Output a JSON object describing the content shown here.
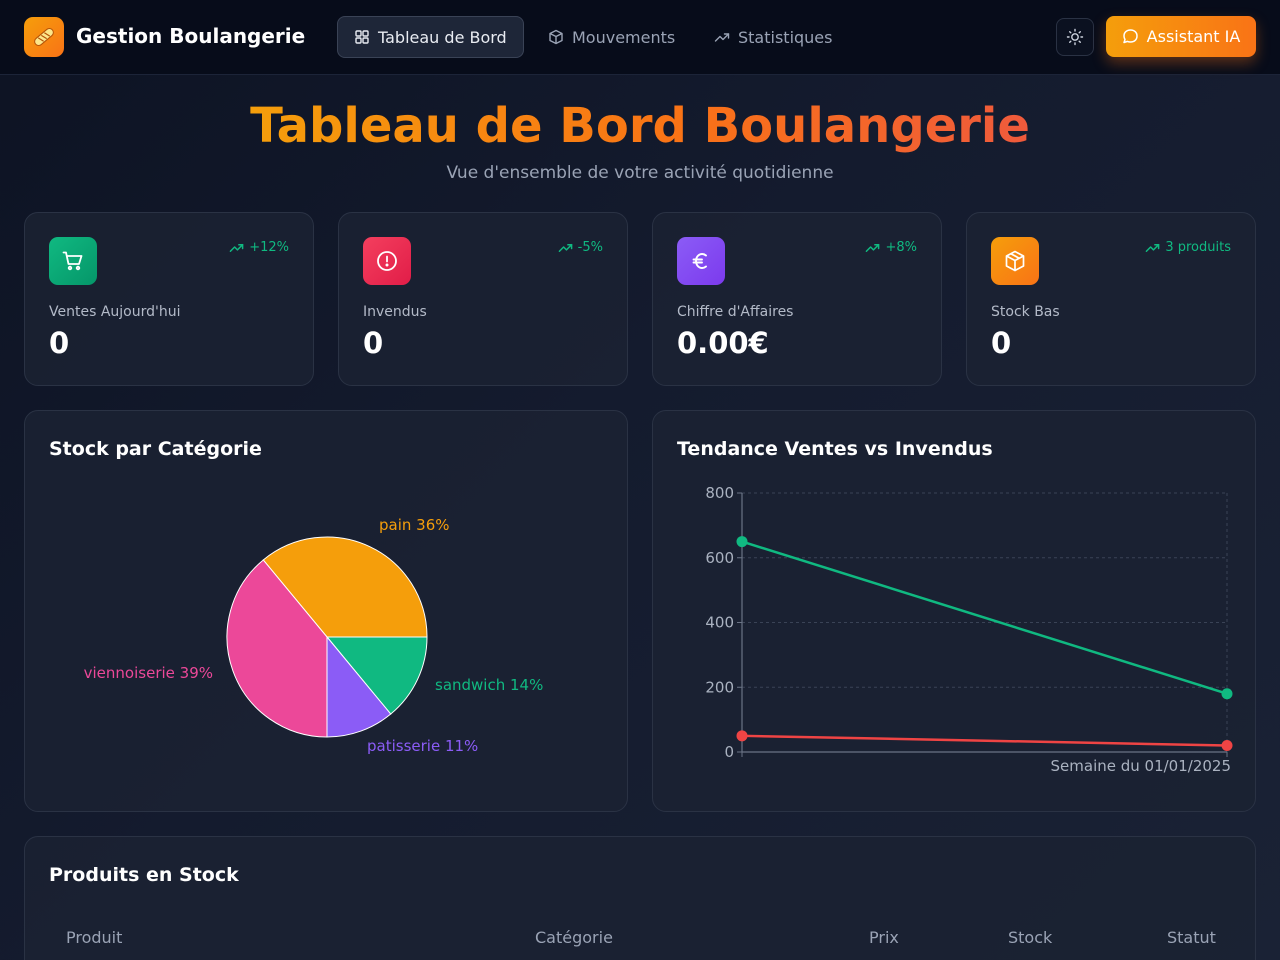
{
  "navbar": {
    "brand": "Gestion Boulangerie",
    "tabs": [
      {
        "label": "Tableau de Bord",
        "icon": "grid-icon",
        "active": true
      },
      {
        "label": "Mouvements",
        "icon": "box-icon",
        "active": false
      },
      {
        "label": "Statistiques",
        "icon": "trending-up-icon",
        "active": false
      }
    ],
    "ai_button": "Assistant IA"
  },
  "header": {
    "title": "Tableau de Bord Boulangerie",
    "subtitle": "Vue d'ensemble de votre activité quotidienne"
  },
  "stats": [
    {
      "label": "Ventes Aujourd'hui",
      "value": "0",
      "trend": "+12%",
      "icon": "cart-icon",
      "color": "#10b981"
    },
    {
      "label": "Invendus",
      "value": "0",
      "trend": "-5%",
      "icon": "alert-icon",
      "color": "#e11d48"
    },
    {
      "label": "Chiffre d'Affaires",
      "value": "0.00€",
      "trend": "+8%",
      "icon": "euro-icon",
      "color": "#8b5cf6"
    },
    {
      "label": "Stock Bas",
      "value": "0",
      "trend": "3 produits",
      "icon": "package-icon",
      "color": "#f97316"
    }
  ],
  "charts": {
    "stock_title": "Stock par Catégorie",
    "trend_title": "Tendance Ventes vs Invendus"
  },
  "chart_data": [
    {
      "type": "pie",
      "title": "Stock par Catégorie",
      "slices": [
        {
          "name": "pain",
          "label": "pain 36%",
          "value": 36,
          "color": "#f59e0b"
        },
        {
          "name": "sandwich",
          "label": "sandwich 14%",
          "value": 14,
          "color": "#10b981"
        },
        {
          "name": "patisserie",
          "label": "patisserie 11%",
          "value": 11,
          "color": "#8b5cf6"
        },
        {
          "name": "viennoiserie",
          "label": "viennoiserie 39%",
          "value": 39,
          "color": "#ec4899"
        }
      ]
    },
    {
      "type": "line",
      "title": "Tendance Ventes vs Invendus",
      "xlabel": "Semaine du 01/01/2025",
      "ylim": [
        0,
        800
      ],
      "yticks": [
        "0",
        "200",
        "400",
        "600",
        "800"
      ],
      "grid": true,
      "series": [
        {
          "values": [
            650,
            180
          ],
          "color": "#10b981"
        },
        {
          "values": [
            50,
            20
          ],
          "color": "#ef4444"
        }
      ]
    }
  ],
  "table": {
    "title": "Produits en Stock",
    "columns": [
      "Produit",
      "Catégorie",
      "Prix",
      "Stock",
      "Statut"
    ]
  }
}
